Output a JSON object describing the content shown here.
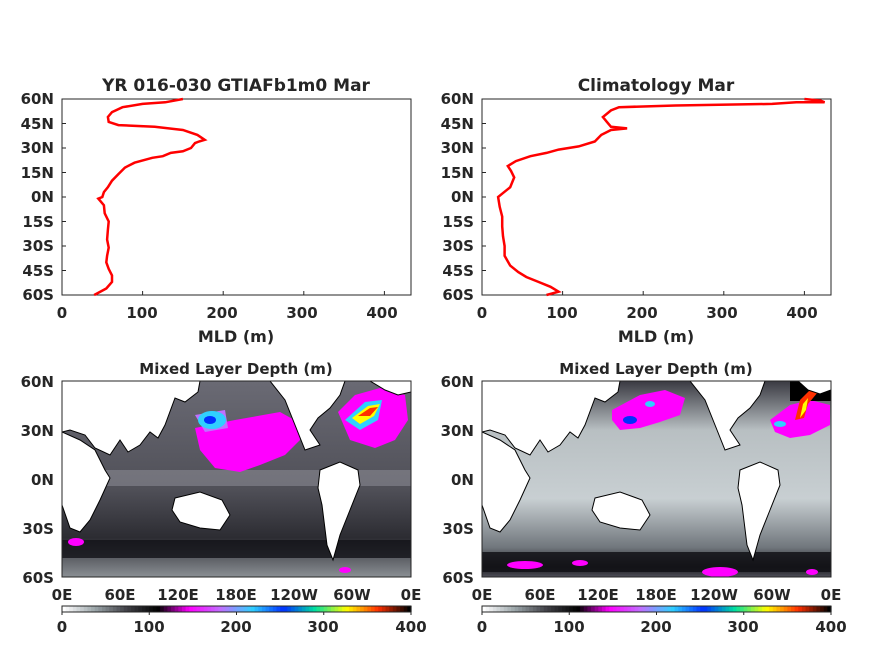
{
  "chart_data": [
    {
      "type": "line",
      "title": "YR 016-030 GTIAFb1m0 Mar",
      "xlabel": "MLD (m)",
      "xlim": [
        0,
        433
      ],
      "ylim": [
        -60,
        60
      ],
      "xticks": [
        "0",
        "100",
        "200",
        "300",
        "400"
      ],
      "yticks": [
        "60N",
        "45N",
        "30N",
        "15N",
        "0N",
        "15S",
        "30S",
        "45S",
        "60S"
      ],
      "line_color": "#ff0000",
      "series": [
        {
          "points": [
            [
              40,
              -60
            ],
            [
              55,
              -56
            ],
            [
              62,
              -52
            ],
            [
              62,
              -48
            ],
            [
              58,
              -44
            ],
            [
              55,
              -40
            ],
            [
              56,
              -36
            ],
            [
              58,
              -31
            ],
            [
              56,
              -26
            ],
            [
              57,
              -20
            ],
            [
              58,
              -15
            ],
            [
              53,
              -10
            ],
            [
              52,
              -5
            ],
            [
              45,
              -1
            ],
            [
              50,
              0
            ],
            [
              52,
              3
            ],
            [
              57,
              6
            ],
            [
              62,
              10
            ],
            [
              70,
              14
            ],
            [
              78,
              18
            ],
            [
              90,
              21
            ],
            [
              112,
              24
            ],
            [
              125,
              25
            ],
            [
              135,
              27
            ],
            [
              150,
              28
            ],
            [
              160,
              30
            ],
            [
              165,
              33
            ],
            [
              170,
              34
            ],
            [
              177,
              35
            ],
            [
              168,
              38
            ],
            [
              150,
              41
            ],
            [
              115,
              43
            ],
            [
              70,
              44
            ],
            [
              58,
              46
            ],
            [
              57,
              49
            ],
            [
              62,
              52
            ],
            [
              75,
              55
            ],
            [
              100,
              57
            ],
            [
              128,
              58
            ],
            [
              150,
              60
            ]
          ]
        }
      ]
    },
    {
      "type": "line",
      "title": "Climatology Mar",
      "xlabel": "MLD (m)",
      "xlim": [
        0,
        433
      ],
      "ylim": [
        -60,
        60
      ],
      "xticks": [
        "0",
        "100",
        "200",
        "300",
        "400"
      ],
      "yticks": [
        "60N",
        "45N",
        "30N",
        "15N",
        "0N",
        "15S",
        "30S",
        "45S",
        "60S"
      ],
      "line_color": "#ff0000",
      "series": [
        {
          "points": [
            [
              80,
              -60
            ],
            [
              95,
              -58
            ],
            [
              85,
              -55
            ],
            [
              70,
              -52
            ],
            [
              55,
              -49
            ],
            [
              45,
              -46
            ],
            [
              35,
              -42
            ],
            [
              28,
              -36
            ],
            [
              28,
              -30
            ],
            [
              26,
              -24
            ],
            [
              25,
              -18
            ],
            [
              25,
              -12
            ],
            [
              22,
              -6
            ],
            [
              20,
              0
            ],
            [
              25,
              2
            ],
            [
              35,
              6
            ],
            [
              40,
              12
            ],
            [
              36,
              16
            ],
            [
              32,
              19
            ],
            [
              42,
              22
            ],
            [
              60,
              25
            ],
            [
              80,
              27
            ],
            [
              95,
              29
            ],
            [
              120,
              31
            ],
            [
              140,
              34
            ],
            [
              148,
              38
            ],
            [
              160,
              41
            ],
            [
              180,
              42
            ],
            [
              160,
              43
            ],
            [
              155,
              46
            ],
            [
              150,
              49
            ],
            [
              160,
              53
            ],
            [
              170,
              55
            ],
            [
              240,
              56
            ],
            [
              360,
              57
            ],
            [
              390,
              58
            ],
            [
              425,
              58
            ],
            [
              420,
              59
            ],
            [
              400,
              60
            ]
          ]
        }
      ]
    },
    {
      "type": "heatmap",
      "title": "Mixed Layer Depth (m)",
      "xticks": [
        "0E",
        "60E",
        "120E",
        "180E",
        "120W",
        "60W",
        "0E"
      ],
      "yticks": [
        "60N",
        "30N",
        "0N",
        "30S",
        "60S"
      ],
      "xlim": [
        0,
        360
      ],
      "ylim": [
        -60,
        60
      ],
      "colorbar": {
        "ticks": [
          "0",
          "100",
          "200",
          "300",
          "400"
        ],
        "range": [
          0,
          400
        ],
        "colors": [
          "#ffffff",
          "#9aa4a8",
          "#404046",
          "#000000",
          "#ff00ff",
          "#c070ff",
          "#30d0ff",
          "#0030ff",
          "#00e0a0",
          "#ffff00",
          "#ff3000",
          "#000000"
        ]
      },
      "features": [
        {
          "lon": 140,
          "lat": 36,
          "mld": 150
        },
        {
          "lon": 200,
          "lat": 30,
          "mld": 130
        },
        {
          "lon": 320,
          "lat": 38,
          "mld": 360
        },
        {
          "lon": 300,
          "lat": 30,
          "mld": 200
        },
        {
          "lon": 200,
          "lat": -50,
          "mld": 60
        }
      ]
    },
    {
      "type": "heatmap",
      "title": "Mixed Layer Depth (m)",
      "xticks": [
        "0E",
        "60E",
        "120E",
        "180E",
        "120W",
        "60W",
        "0E"
      ],
      "yticks": [
        "60N",
        "30N",
        "0N",
        "30S",
        "60S"
      ],
      "xlim": [
        0,
        360
      ],
      "ylim": [
        -60,
        60
      ],
      "colorbar": {
        "ticks": [
          "0",
          "100",
          "200",
          "300",
          "400"
        ],
        "range": [
          0,
          400
        ],
        "colors": [
          "#ffffff",
          "#9aa4a8",
          "#404046",
          "#000000",
          "#ff00ff",
          "#c070ff",
          "#30d0ff",
          "#0030ff",
          "#00e0a0",
          "#ffff00",
          "#ff3000",
          "#000000"
        ]
      },
      "features": [
        {
          "lon": 160,
          "lat": 40,
          "mld": 140
        },
        {
          "lon": 330,
          "lat": 50,
          "mld": 380
        },
        {
          "lon": 320,
          "lat": 35,
          "mld": 130
        },
        {
          "lon": 100,
          "lat": -55,
          "mld": 120
        },
        {
          "lon": 240,
          "lat": -57,
          "mld": 120
        }
      ]
    }
  ]
}
